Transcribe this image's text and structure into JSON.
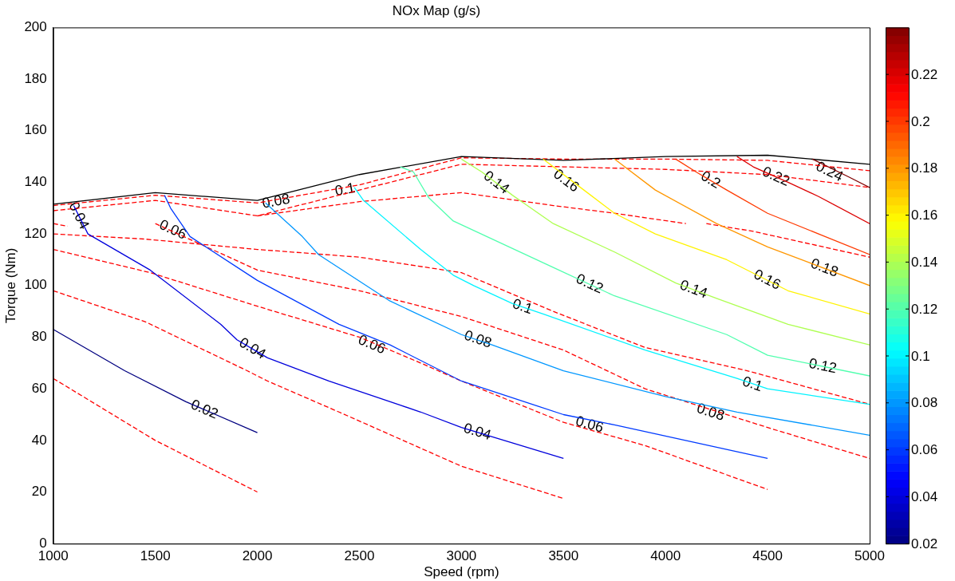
{
  "chart_data": {
    "type": "line",
    "title": "NOx Map (g/s)",
    "xlabel": "Speed (rpm)",
    "ylabel": "Torque (Nm)",
    "xlim": [
      1000,
      5000
    ],
    "xticks": [
      1000,
      1500,
      2000,
      2500,
      3000,
      3500,
      4000,
      4500,
      5000
    ],
    "ylim": [
      0,
      200
    ],
    "yticks": [
      0,
      20,
      40,
      60,
      80,
      100,
      120,
      140,
      160,
      180,
      200
    ],
    "grid": false,
    "legend": false,
    "marker": "none",
    "line_style": "solid",
    "clim": [
      0.02,
      0.24
    ],
    "cticks": [
      0.02,
      0.04,
      0.06,
      0.08,
      0.1,
      0.12,
      0.14,
      0.16,
      0.18,
      0.2,
      0.22
    ],
    "series": [
      {
        "color": "#000000",
        "x": [
          1000,
          1500,
          2000,
          2500,
          3000,
          3500,
          4000,
          4500,
          5000
        ],
        "values": [
          131.5,
          136,
          133,
          143,
          150,
          148.5,
          150,
          150.5,
          147
        ]
      },
      {
        "color": "#000080",
        "x": [
          1000,
          1350,
          1650,
          2000
        ],
        "values": [
          83,
          67,
          55,
          43
        ]
      },
      {
        "color": "#0000dc",
        "x": [
          1100,
          1170,
          1475,
          1820,
          1900,
          2050,
          2350,
          2800,
          3000,
          3500
        ],
        "values": [
          131,
          120,
          106,
          85,
          79,
          72,
          63,
          51,
          45,
          33
        ]
      },
      {
        "color": "#003aff",
        "x": [
          1545,
          1575,
          1670,
          2000,
          2400,
          2650,
          3000,
          3500,
          3750,
          4500
        ],
        "values": [
          135,
          130,
          119,
          102,
          85,
          77,
          63,
          50,
          46,
          33
        ]
      },
      {
        "color": "#0097ff",
        "x": [
          2040,
          2220,
          2300,
          2650,
          3000,
          3150,
          3500,
          4000,
          4350,
          5000
        ],
        "values": [
          132,
          119,
          112,
          94,
          81,
          77,
          67,
          57,
          51,
          42
        ]
      },
      {
        "color": "#00f3ff",
        "x": [
          2475,
          2520,
          2800,
          2960,
          3060,
          3250,
          3400,
          3900,
          4350,
          4500,
          5000
        ],
        "values": [
          138,
          133,
          114,
          104,
          100,
          93,
          89,
          75,
          64,
          60,
          54
        ]
      },
      {
        "color": "#51ffae",
        "x": [
          2700,
          2765,
          2840,
          2960,
          3450,
          3750,
          4300,
          4500,
          5000
        ],
        "values": [
          146,
          144,
          134,
          125,
          107,
          96,
          81,
          73,
          65
        ]
      },
      {
        "color": "#aeff51",
        "x": [
          3000,
          3100,
          3250,
          3450,
          3750,
          4050,
          4250,
          4600,
          5000
        ],
        "values": [
          149,
          144,
          135,
          124,
          113,
          101,
          95,
          85,
          77
        ]
      },
      {
        "color": "#fff300",
        "x": [
          3400,
          3600,
          3750,
          3950,
          4300,
          4600,
          5000
        ],
        "values": [
          149,
          137,
          128,
          120,
          110,
          98,
          89
        ]
      },
      {
        "color": "#ff9700",
        "x": [
          3750,
          3950,
          4250,
          4500,
          4700,
          5000
        ],
        "values": [
          149,
          137,
          124,
          115,
          109,
          100
        ]
      },
      {
        "color": "#ff3a00",
        "x": [
          4050,
          4150,
          4300,
          4500,
          4750,
          5000
        ],
        "values": [
          149,
          144,
          137,
          128,
          120,
          112
        ]
      },
      {
        "color": "#dc0000",
        "x": [
          4350,
          4430,
          4600,
          4750,
          5000
        ],
        "values": [
          150,
          146,
          140,
          134.5,
          124
        ]
      },
      {
        "color": "#800000",
        "x": [
          4720,
          4900,
          5000
        ],
        "values": [
          149,
          142,
          138
        ]
      },
      {
        "color": "#ff0000",
        "line_style": "dashed",
        "x": [
          1000,
          1500,
          2000,
          2500,
          3000,
          3500,
          4000,
          4500,
          5000
        ],
        "values": [
          131,
          135,
          132,
          139,
          149.5,
          149,
          149,
          148.5,
          144.5
        ]
      },
      {
        "color": "#ff0000",
        "line_style": "dashed",
        "x": [
          1000,
          1500,
          2000,
          2500,
          3000,
          3500,
          4000,
          4500,
          5000
        ],
        "values": [
          129,
          133,
          127,
          137,
          147,
          146,
          145,
          143,
          138
        ]
      },
      {
        "color": "#ff0000",
        "line_style": "dashed",
        "x": [
          2000,
          2500,
          3000,
          3450,
          3750,
          4100
        ],
        "values": [
          127,
          132.5,
          136,
          131,
          128,
          124
        ]
      },
      {
        "color": "#ff0000",
        "line_style": "dashed",
        "x": [
          4200,
          4430,
          5000
        ],
        "values": [
          124,
          121,
          111
        ]
      },
      {
        "color": "#ff0000",
        "line_style": "dashed",
        "x": [
          1000,
          1070
        ],
        "values": [
          124,
          123
        ]
      },
      {
        "color": "#ff0000",
        "line_style": "dashed",
        "x": [
          1000,
          1450,
          2000,
          2500,
          3000,
          3450,
          3900,
          4400,
          5000
        ],
        "values": [
          120,
          118,
          114,
          111,
          105,
          90,
          76,
          67,
          54
        ]
      },
      {
        "color": "#ff0000",
        "line_style": "dashed",
        "x": [
          1500,
          2000,
          2500,
          3000,
          3500,
          3900,
          4500,
          5000
        ],
        "values": [
          124,
          106,
          98,
          88,
          75,
          60,
          45,
          33
        ]
      },
      {
        "color": "#ff0000",
        "line_style": "dashed",
        "x": [
          1000,
          1475,
          2000,
          2500,
          2800,
          3000,
          3500,
          3900,
          4500
        ],
        "values": [
          114,
          105,
          92,
          80,
          70,
          63,
          47,
          38,
          21
        ]
      },
      {
        "color": "#ff0000",
        "line_style": "dashed",
        "x": [
          1000,
          1450,
          1950,
          2050,
          2400,
          3000,
          3500
        ],
        "values": [
          98,
          86,
          67,
          63,
          51,
          30,
          17.5
        ]
      },
      {
        "color": "#ff0000",
        "line_style": "dashed",
        "x": [
          1000,
          1500,
          2000
        ],
        "values": [
          64,
          40,
          20
        ]
      }
    ],
    "annotations": [
      {
        "text": "0.04",
        "x": 1123,
        "y": 127
      },
      {
        "text": "0.06",
        "x": 1585,
        "y": 121.5
      },
      {
        "text": "0.08",
        "x": 2092,
        "y": 132.5
      },
      {
        "text": "0.1",
        "x": 2430,
        "y": 137
      },
      {
        "text": "0.14",
        "x": 3170,
        "y": 139.8
      },
      {
        "text": "0.16",
        "x": 3512,
        "y": 140.5
      },
      {
        "text": "0.2",
        "x": 4220,
        "y": 140.8
      },
      {
        "text": "0.22",
        "x": 4540,
        "y": 142.1
      },
      {
        "text": "0.24",
        "x": 4802,
        "y": 144
      },
      {
        "text": "0.04",
        "x": 1975,
        "y": 75.5
      },
      {
        "text": "0.02",
        "x": 1740,
        "y": 51.9
      },
      {
        "text": "0.06",
        "x": 2560,
        "y": 77
      },
      {
        "text": "0.04",
        "x": 3077,
        "y": 43.2
      },
      {
        "text": "0.08",
        "x": 3080,
        "y": 79
      },
      {
        "text": "0.1",
        "x": 3298,
        "y": 91.7
      },
      {
        "text": "0.06",
        "x": 3627,
        "y": 46
      },
      {
        "text": "0.12",
        "x": 3627,
        "y": 100.5
      },
      {
        "text": "0.14",
        "x": 4137,
        "y": 98.4
      },
      {
        "text": "0.08",
        "x": 4220,
        "y": 50.8
      },
      {
        "text": "0.1",
        "x": 4425,
        "y": 61.7
      },
      {
        "text": "0.16",
        "x": 4497,
        "y": 102.1
      },
      {
        "text": "0.12",
        "x": 4770,
        "y": 68.7
      },
      {
        "text": "0.18",
        "x": 4778,
        "y": 106.7
      }
    ]
  }
}
